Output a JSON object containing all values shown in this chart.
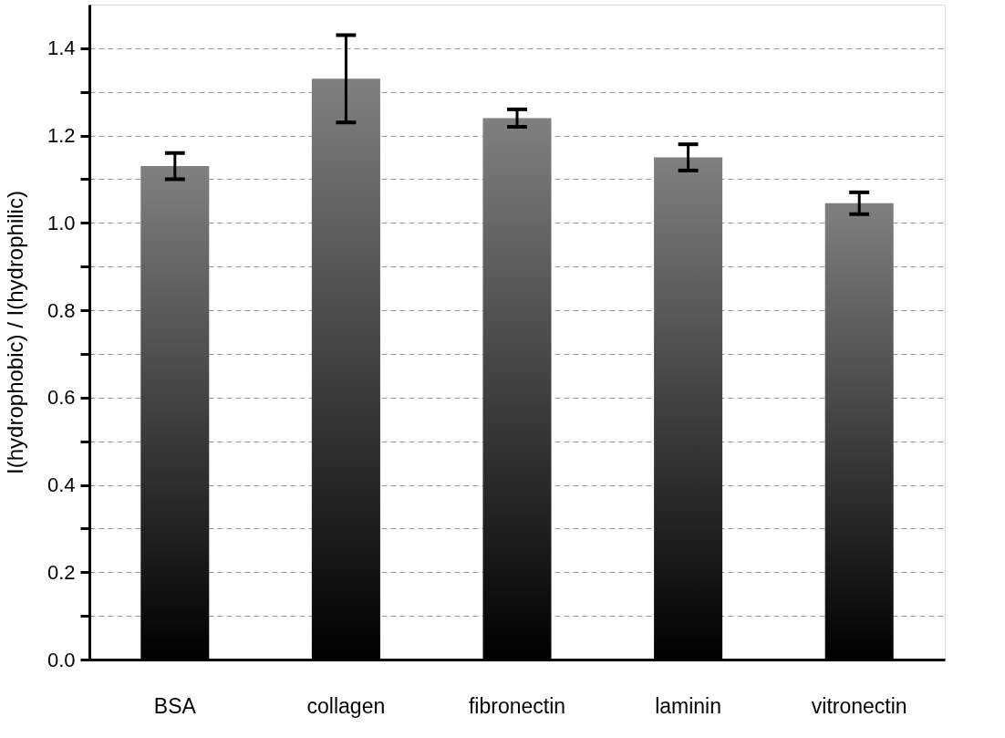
{
  "chart_data": {
    "type": "bar",
    "ylabel": "I(hydrophobic) / I(hydrophilic)",
    "categories": [
      "BSA",
      "collagen",
      "fibronectin",
      "laminin",
      "vitronectin"
    ],
    "values": [
      1.13,
      1.33,
      1.24,
      1.15,
      1.045
    ],
    "errors": [
      0.03,
      0.1,
      0.02,
      0.03,
      0.025
    ],
    "color": "#808080",
    "ylim": [
      0,
      1.5
    ],
    "yticks": [
      {
        "value": 0,
        "label": "0.0"
      },
      {
        "value": 0.1,
        "label": null
      },
      0.2,
      {
        "value": 0.3,
        "label": null
      },
      0.4,
      {
        "value": 0.5,
        "label": null
      },
      0.6,
      {
        "value": 0.7,
        "label": null
      },
      0.8,
      {
        "value": 0.9,
        "label": null
      },
      {
        "value": 1.0,
        "label": "1.0"
      },
      {
        "value": 1.1,
        "label": null
      },
      1.2,
      {
        "value": 1.3,
        "label": null
      },
      1.4
    ],
    "grid": "y"
  }
}
